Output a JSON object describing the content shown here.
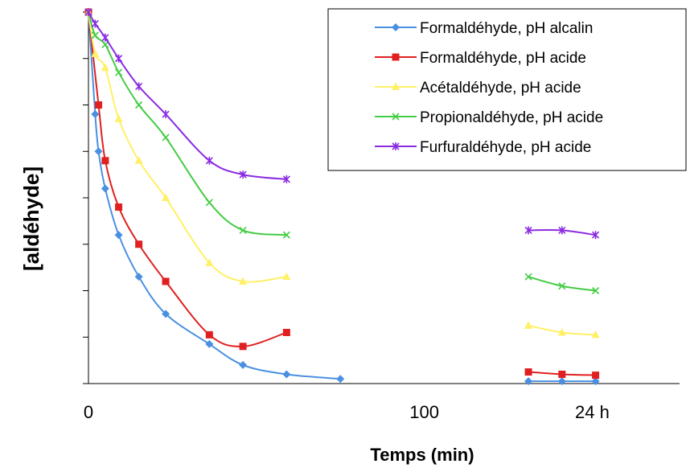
{
  "chart_data": {
    "type": "line",
    "title": "",
    "xlabel": "Temps (min)",
    "ylabel": "[aldéhyde]",
    "x_tick_labels": [
      {
        "x": 0,
        "label": "0"
      },
      {
        "x": 100,
        "label": "100"
      },
      {
        "x": 150,
        "label": "24 h"
      }
    ],
    "xlim": [
      0,
      176
    ],
    "ylim": [
      0,
      8
    ],
    "y_tick_count": 8,
    "y_tick_labels_visible": false,
    "grid": false,
    "legend_position": "top-right",
    "series": [
      {
        "name": "Formaldéhyde, pH alcalin",
        "color": "#4a90e2",
        "marker": "diamond",
        "segments": [
          [
            [
              0,
              8.0
            ],
            [
              2,
              5.8
            ],
            [
              3,
              5.0
            ],
            [
              5,
              4.2
            ],
            [
              9,
              3.2
            ],
            [
              15,
              2.3
            ],
            [
              23,
              1.5
            ],
            [
              36,
              0.85
            ],
            [
              46,
              0.4
            ],
            [
              59,
              0.2
            ],
            [
              75,
              0.1
            ]
          ],
          [
            [
              131,
              0.05
            ],
            [
              141,
              0.05
            ],
            [
              151,
              0.05
            ]
          ]
        ]
      },
      {
        "name": "Formaldéhyde, pH acide",
        "color": "#e02020",
        "marker": "square",
        "segments": [
          [
            [
              0,
              8.0
            ],
            [
              3,
              6.0
            ],
            [
              5,
              4.8
            ],
            [
              9,
              3.8
            ],
            [
              15,
              3.0
            ],
            [
              23,
              2.2
            ],
            [
              36,
              1.05
            ],
            [
              46,
              0.8
            ],
            [
              59,
              1.1
            ]
          ],
          [
            [
              131,
              0.25
            ],
            [
              141,
              0.2
            ],
            [
              151,
              0.18
            ]
          ]
        ]
      },
      {
        "name": "Acétaldéhyde, pH acide",
        "color": "#fff066",
        "marker": "triangle",
        "segments": [
          [
            [
              0,
              8.0
            ],
            [
              2,
              7.1
            ],
            [
              5,
              6.8
            ],
            [
              9,
              5.7
            ],
            [
              15,
              4.8
            ],
            [
              23,
              4.0
            ],
            [
              36,
              2.6
            ],
            [
              46,
              2.2
            ],
            [
              59,
              2.3
            ]
          ],
          [
            [
              131,
              1.25
            ],
            [
              141,
              1.1
            ],
            [
              151,
              1.05
            ]
          ]
        ]
      },
      {
        "name": "Propionaldéhyde, pH acide",
        "color": "#44cc44",
        "marker": "x",
        "segments": [
          [
            [
              0,
              8.0
            ],
            [
              2,
              7.5
            ],
            [
              5,
              7.3
            ],
            [
              9,
              6.7
            ],
            [
              15,
              6.0
            ],
            [
              23,
              5.3
            ],
            [
              36,
              3.9
            ],
            [
              46,
              3.3
            ],
            [
              59,
              3.2
            ]
          ],
          [
            [
              131,
              2.3
            ],
            [
              141,
              2.1
            ],
            [
              151,
              2.0
            ]
          ]
        ]
      },
      {
        "name": "Furfuraldéhyde, pH acide",
        "color": "#8a2be2",
        "marker": "star",
        "segments": [
          [
            [
              0,
              8.0
            ],
            [
              2,
              7.75
            ],
            [
              5,
              7.45
            ],
            [
              9,
              7.0
            ],
            [
              15,
              6.4
            ],
            [
              23,
              5.8
            ],
            [
              36,
              4.8
            ],
            [
              46,
              4.5
            ],
            [
              59,
              4.4
            ]
          ],
          [
            [
              131,
              3.3
            ],
            [
              141,
              3.3
            ],
            [
              151,
              3.2
            ]
          ]
        ]
      }
    ]
  }
}
